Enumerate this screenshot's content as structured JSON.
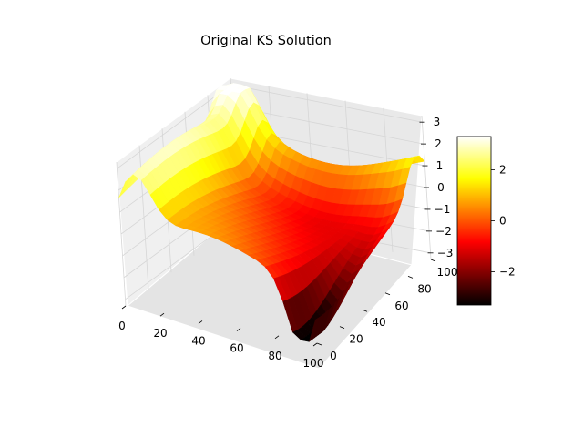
{
  "chart_data": {
    "type": "surface3d",
    "title": "Original KS Solution",
    "x_ticks": [
      "0",
      "20",
      "40",
      "60",
      "80",
      "100"
    ],
    "y_ticks": [
      "0",
      "20",
      "40",
      "60",
      "80",
      "100"
    ],
    "z_ticks": [
      "3",
      "2",
      "1",
      "0",
      "−1",
      "−2",
      "−3"
    ],
    "xlim": [
      0,
      100
    ],
    "ylim": [
      0,
      100
    ],
    "zlim": [
      -3.3,
      3.3
    ],
    "colormap": "hot",
    "colorbar": {
      "ticks": [
        "2",
        "0",
        "−2"
      ],
      "range": [
        -3.3,
        3.3
      ]
    },
    "grid": true
  }
}
